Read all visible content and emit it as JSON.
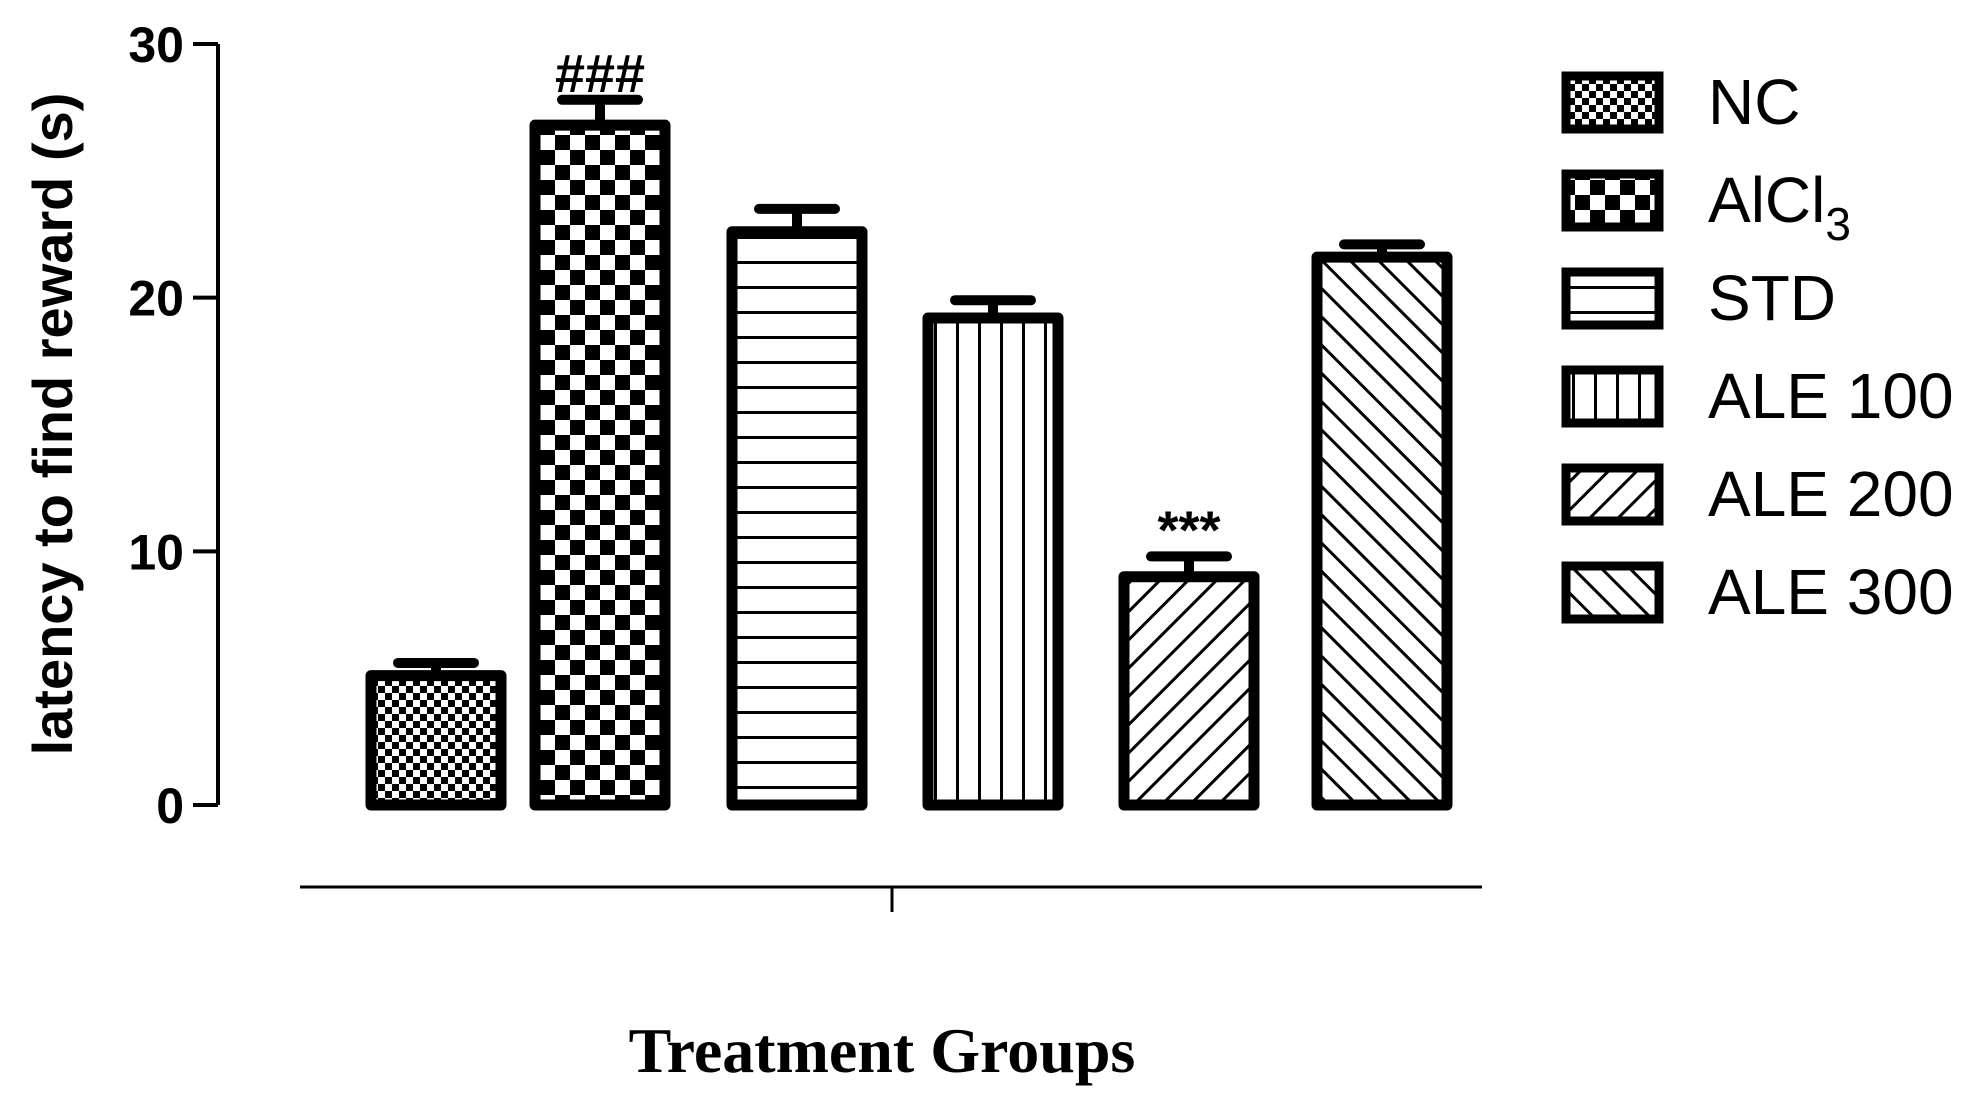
{
  "chart_data": {
    "type": "bar",
    "categories": [
      "NC",
      "AlCl3",
      "STD",
      "ALE 100",
      "ALE 200",
      "ALE 300"
    ],
    "series": [
      {
        "values": [
          5.1,
          26.8,
          22.6,
          19.2,
          9.0,
          21.6
        ],
        "errors": [
          0.5,
          1.0,
          0.9,
          0.7,
          0.8,
          0.5
        ]
      }
    ],
    "patterns": [
      "fine-check",
      "coarse-check",
      "horizontal-lines",
      "vertical-lines",
      "diagonal-up",
      "diagonal-down"
    ],
    "annotations": [
      {
        "category": "AlCl3",
        "text": "###"
      },
      {
        "category": "ALE 200",
        "text": "***"
      }
    ],
    "legend": {
      "position": "right",
      "entries": [
        {
          "label": "NC",
          "pattern": "fine-check"
        },
        {
          "label": "AlCl",
          "subscript": "3",
          "pattern": "coarse-check"
        },
        {
          "label": "STD",
          "pattern": "horizontal-lines"
        },
        {
          "label": "ALE 100",
          "pattern": "vertical-lines"
        },
        {
          "label": "ALE 200",
          "pattern": "diagonal-up"
        },
        {
          "label": "ALE 300",
          "pattern": "diagonal-down"
        }
      ]
    },
    "ylabel": "latency to find reward (s)",
    "xlabel": "Treatment Groups",
    "ylim": [
      0,
      30
    ],
    "yticks": [
      "0",
      "10",
      "20",
      "30"
    ],
    "grid": false,
    "colors": {
      "bar_fill": "#ffffff",
      "ink": "#000000"
    }
  }
}
